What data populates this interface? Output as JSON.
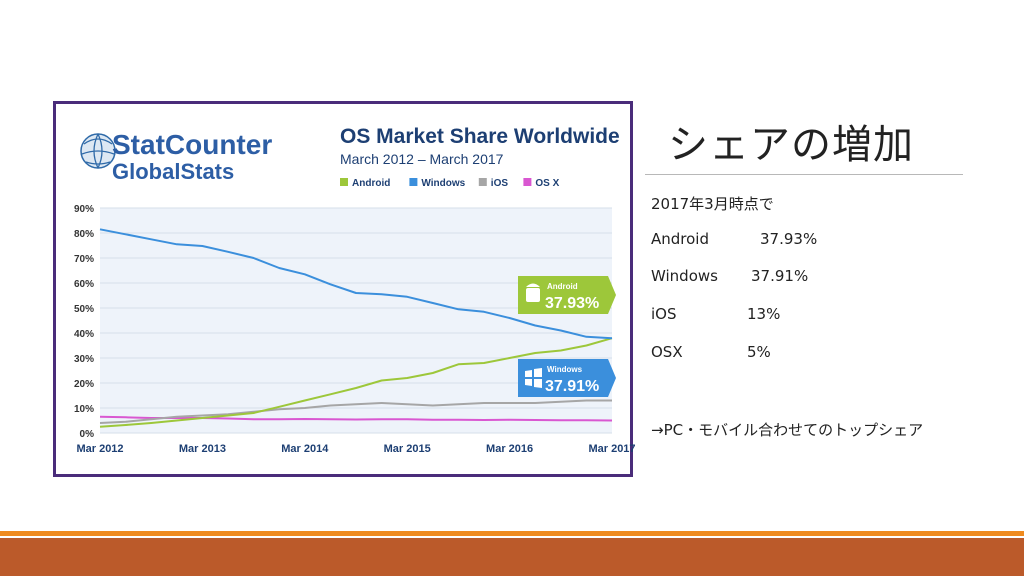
{
  "slide": {
    "title": "シェアの増加",
    "notes": [
      {
        "label": "2017年3月時点で",
        "value": ""
      },
      {
        "label": "Android",
        "value": "37.93%"
      },
      {
        "label": "Windows",
        "value": "37.91%"
      },
      {
        "label": "iOS",
        "value": "13%"
      },
      {
        "label": "OSX",
        "value": "5%"
      },
      {
        "label": "→PC・モバイル合わせてのトップシェア",
        "value": ""
      }
    ]
  },
  "brand": {
    "logo_top": "StatCounter",
    "logo_bottom": "GlobalStats"
  },
  "colors": {
    "android": "#9dc73a",
    "windows": "#3b8fdc",
    "ios": "#a6a6a6",
    "osx": "#d957d1",
    "frame": "#4a2c7a",
    "footer": "#bb5a2a",
    "footer_line": "#ef8a1e"
  },
  "chart_data": {
    "type": "line",
    "title": "OS Market Share Worldwide",
    "subtitle": "March 2012 – March 2017",
    "xlabel": "",
    "ylabel": "",
    "ylim": [
      0,
      90
    ],
    "yticks": [
      "0%",
      "10%",
      "20%",
      "30%",
      "40%",
      "50%",
      "60%",
      "70%",
      "80%",
      "90%"
    ],
    "xticks": [
      "Mar 2012",
      "Mar 2013",
      "Mar 2014",
      "Mar 2015",
      "Mar 2016",
      "Mar 2017"
    ],
    "x": [
      "2012-03",
      "2012-06",
      "2012-09",
      "2012-12",
      "2013-03",
      "2013-06",
      "2013-09",
      "2013-12",
      "2014-03",
      "2014-06",
      "2014-09",
      "2014-12",
      "2015-03",
      "2015-06",
      "2015-09",
      "2015-12",
      "2016-03",
      "2016-06",
      "2016-09",
      "2016-12",
      "2017-03"
    ],
    "legend": "top",
    "series": [
      {
        "name": "Android",
        "color": "#9dc73a",
        "values": [
          2.5,
          3.2,
          4,
          5,
          6,
          7,
          8,
          10.5,
          13,
          15.5,
          18,
          21,
          22,
          24,
          27.5,
          28,
          30,
          32,
          33,
          35,
          37.93
        ]
      },
      {
        "name": "Windows",
        "color": "#3b8fdc",
        "values": [
          81.5,
          79.5,
          77.5,
          75.5,
          74.8,
          72.5,
          70,
          66,
          63.5,
          59.5,
          56,
          55.5,
          54.5,
          52,
          49.5,
          48.5,
          46,
          43,
          41,
          38.5,
          37.91
        ]
      },
      {
        "name": "iOS",
        "color": "#a6a6a6",
        "values": [
          4,
          4.5,
          5.5,
          6.5,
          7,
          7.5,
          8.5,
          9.5,
          10,
          11,
          11.5,
          12,
          11.5,
          11,
          11.5,
          12,
          12,
          12,
          12.5,
          13,
          13
        ]
      },
      {
        "name": "OS X",
        "color": "#d957d1",
        "values": [
          6.5,
          6.3,
          6,
          6,
          6,
          5.8,
          5.5,
          5.5,
          5.6,
          5.5,
          5.4,
          5.5,
          5.5,
          5.3,
          5.3,
          5.2,
          5.3,
          5.2,
          5.1,
          5.1,
          5
        ]
      }
    ],
    "callouts": [
      {
        "name": "Android",
        "value": "37.93%"
      },
      {
        "name": "Windows",
        "value": "37.91%"
      }
    ]
  }
}
